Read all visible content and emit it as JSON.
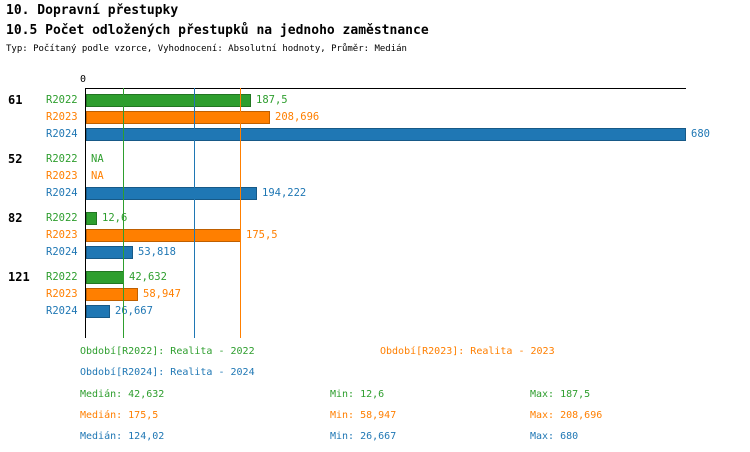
{
  "header": {
    "title": "10. Dopravní přestupky",
    "subtitle": "10.5 Počet odložených přestupků na jednoho zaměstnance",
    "meta": "Typ: Počítaný podle vzorce, Vyhodnocení: Absolutní hodnoty, Průměr: Medián"
  },
  "colors": {
    "R2022": "#2e9e2e",
    "R2023": "#ff7f00",
    "R2024": "#1f77b4",
    "axis": "#000000"
  },
  "chart_data": {
    "type": "bar",
    "orientation": "horizontal",
    "title": "10.5 Počet odložených přestupků na jednoho zaměstnance",
    "xlabel": "",
    "ylabel": "",
    "xlim": [
      0,
      680
    ],
    "x_ticks": [
      "0"
    ],
    "grid": false,
    "legend_position": "bottom",
    "categories": [
      "61",
      "52",
      "82",
      "121"
    ],
    "series": [
      {
        "name": "R2022",
        "values": [
          187.5,
          null,
          12.6,
          42.632
        ],
        "labels": [
          "187,5",
          "NA",
          "12,6",
          "42,632"
        ]
      },
      {
        "name": "R2023",
        "values": [
          208.696,
          null,
          175.5,
          58.947
        ],
        "labels": [
          "208,696",
          "NA",
          "175,5",
          "58,947"
        ]
      },
      {
        "name": "R2024",
        "values": [
          680,
          194.222,
          53.818,
          26.667
        ],
        "labels": [
          "680",
          "194,222",
          "53,818",
          "26,667"
        ]
      }
    ],
    "median_lines": [
      {
        "series": "R2022",
        "value": 42.632
      },
      {
        "series": "R2023",
        "value": 175.5
      },
      {
        "series": "R2024",
        "value": 124.02
      }
    ]
  },
  "legend": [
    {
      "series": "R2022",
      "label": "Období[R2022]: Realita - 2022"
    },
    {
      "series": "R2023",
      "label": "Období[R2023]: Realita - 2023"
    },
    {
      "series": "R2024",
      "label": "Období[R2024]: Realita - 2024"
    }
  ],
  "stats": [
    {
      "series": "R2022",
      "median": "Medián: 42,632",
      "min": "Min: 12,6",
      "max": "Max: 187,5"
    },
    {
      "series": "R2023",
      "median": "Medián: 175,5",
      "min": "Min: 58,947",
      "max": "Max: 208,696"
    },
    {
      "series": "R2024",
      "median": "Medián: 124,02",
      "min": "Min: 26,667",
      "max": "Max: 680"
    }
  ]
}
